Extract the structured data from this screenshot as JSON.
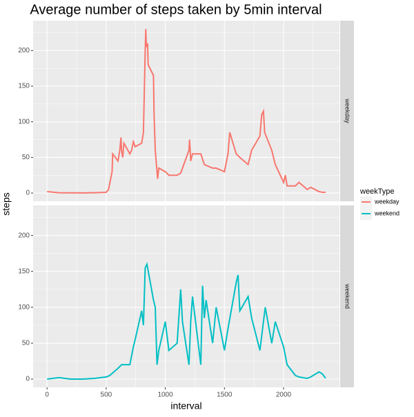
{
  "chart_data": {
    "type": "line",
    "title": "Average number of steps taken by 5min interval",
    "x_label": "interval",
    "y_label": "steps",
    "legend_title": "weekType",
    "xlim": [
      -117.75,
      2472.75
    ],
    "xticks": [
      0,
      500,
      1000,
      1500,
      2000
    ],
    "x_minor_ticks": [
      250,
      750,
      1250,
      1750,
      2250
    ],
    "ylim": [
      -11.52,
      241.9
    ],
    "yticks": [
      0,
      50,
      100,
      150,
      200
    ],
    "y_minor_ticks": [
      25,
      75,
      125,
      175,
      225
    ],
    "grid": true,
    "legend": "right",
    "series": [
      {
        "name": "weekday",
        "color": "#f8766d",
        "x": [
          0,
          100,
          200,
          300,
          400,
          500,
          520,
          550,
          555,
          600,
          615,
          625,
          630,
          640,
          650,
          700,
          715,
          730,
          745,
          800,
          815,
          830,
          835,
          840,
          850,
          855,
          900,
          905,
          915,
          925,
          935,
          945,
          1000,
          1030,
          1100,
          1130,
          1200,
          1205,
          1215,
          1230,
          1300,
          1330,
          1400,
          1430,
          1500,
          1530,
          1545,
          1600,
          1630,
          1700,
          1730,
          1800,
          1815,
          1830,
          1840,
          1900,
          1930,
          2000,
          2015,
          2030,
          2100,
          2130,
          2200,
          2230,
          2300,
          2330,
          2355
        ],
        "values": [
          2,
          0.5,
          0.3,
          0.2,
          0.5,
          1,
          5,
          30,
          55,
          45,
          60,
          78,
          60,
          50,
          70,
          55,
          60,
          72,
          65,
          70,
          85,
          200,
          230,
          205,
          210,
          180,
          165,
          110,
          60,
          40,
          20,
          35,
          30,
          25,
          25,
          28,
          60,
          75,
          45,
          55,
          55,
          40,
          35,
          35,
          30,
          55,
          85,
          55,
          50,
          40,
          60,
          80,
          110,
          115,
          85,
          60,
          40,
          15,
          25,
          10,
          10,
          15,
          5,
          8,
          2,
          1,
          1
        ]
      },
      {
        "name": "weekend",
        "color": "#00bfc4",
        "x": [
          0,
          100,
          200,
          300,
          400,
          500,
          530,
          600,
          630,
          700,
          730,
          745,
          800,
          815,
          830,
          845,
          900,
          915,
          930,
          945,
          1000,
          1015,
          1030,
          1100,
          1130,
          1145,
          1200,
          1215,
          1230,
          1300,
          1315,
          1330,
          1345,
          1400,
          1430,
          1500,
          1530,
          1600,
          1615,
          1630,
          1700,
          1730,
          1800,
          1830,
          1845,
          1900,
          1930,
          2000,
          2030,
          2100,
          2130,
          2200,
          2230,
          2300,
          2330,
          2355
        ],
        "values": [
          0,
          2,
          0,
          0,
          1,
          3,
          5,
          15,
          20,
          20,
          45,
          55,
          95,
          75,
          155,
          160,
          110,
          100,
          20,
          40,
          80,
          60,
          40,
          50,
          125,
          80,
          20,
          80,
          115,
          20,
          130,
          85,
          110,
          50,
          100,
          40,
          70,
          135,
          145,
          95,
          115,
          85,
          40,
          80,
          100,
          50,
          80,
          45,
          20,
          5,
          3,
          1,
          3,
          10,
          7,
          1
        ]
      }
    ]
  }
}
